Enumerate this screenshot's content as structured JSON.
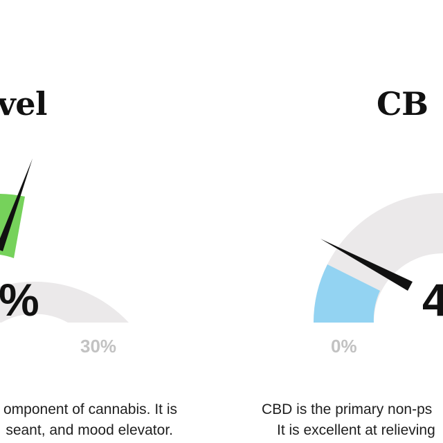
{
  "thc": {
    "title": "vel",
    "percent_text": "%",
    "max_label": "30%",
    "description_line1": "omponent of cannabis. It is",
    "description_line2": "seant, and mood elevator.",
    "color": "#76d25b",
    "track_color": "#ebe9ea"
  },
  "cbd": {
    "title": "CB",
    "percent_text": "4",
    "min_label": "0%",
    "description_line1": "CBD is the primary non-ps",
    "description_line2": "It is excellent at relieving",
    "color": "#93d3f2",
    "track_color": "#ebe9ea"
  }
}
